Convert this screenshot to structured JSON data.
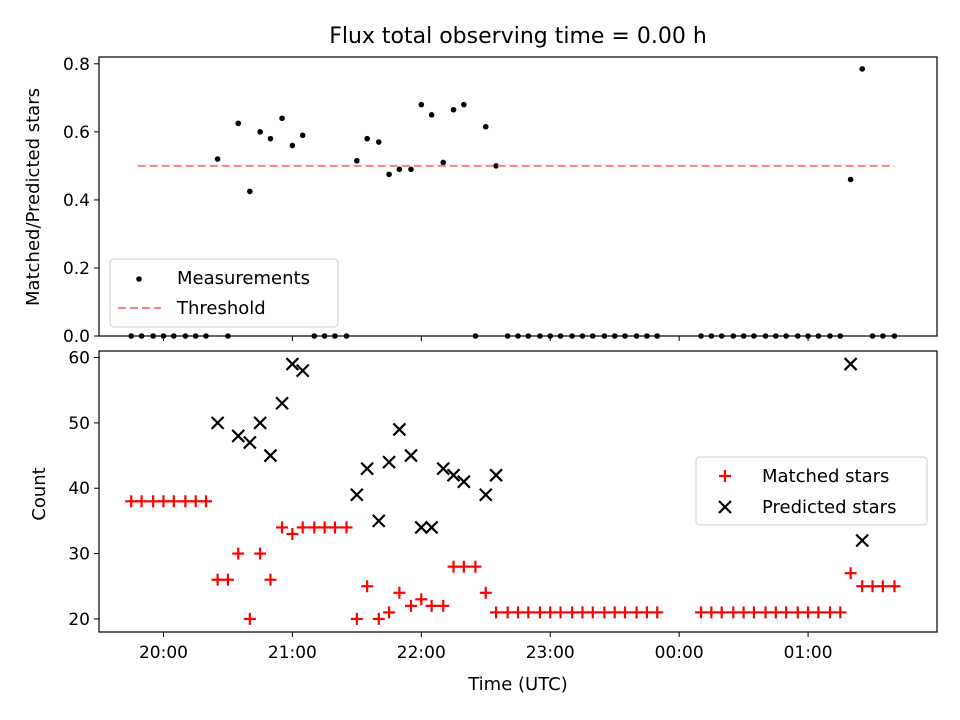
{
  "chart_data": [
    {
      "type": "scatter",
      "title": "Flux total observing time = 0.00 h",
      "xlabel": "",
      "ylabel": "Matched/Predicted stars",
      "ylim": [
        0,
        0.82
      ],
      "yticks": [
        "0.0",
        "0.2",
        "0.4",
        "0.6",
        "0.8"
      ],
      "ytick_values": [
        0,
        0.2,
        0.4,
        0.6,
        0.8
      ],
      "xlim_hours": [
        19.5,
        26.0
      ],
      "grid": false,
      "legend_placement": "lower-left",
      "series": [
        {
          "name": "Measurements",
          "marker": "dot",
          "color": "#000000",
          "x_hours": [
            19.75,
            19.83,
            19.92,
            20.0,
            20.08,
            20.17,
            20.25,
            20.33,
            20.42,
            20.5,
            20.58,
            20.67,
            20.75,
            20.83,
            20.92,
            21.0,
            21.08,
            21.17,
            21.25,
            21.33,
            21.42,
            21.5,
            21.58,
            21.67,
            21.75,
            21.83,
            21.92,
            22.0,
            22.08,
            22.17,
            22.25,
            22.33,
            22.42,
            22.5,
            22.58,
            22.67,
            22.75,
            22.83,
            22.92,
            23.0,
            23.08,
            23.17,
            23.25,
            23.33,
            23.42,
            23.5,
            23.58,
            23.67,
            23.75,
            23.83,
            24.17,
            24.25,
            24.33,
            24.42,
            24.5,
            24.58,
            24.67,
            24.75,
            24.83,
            24.92,
            25.0,
            25.08,
            25.17,
            25.25,
            25.33,
            25.42,
            25.5,
            25.58,
            25.67
          ],
          "values": [
            0,
            0,
            0,
            0,
            0,
            0,
            0,
            0,
            0.52,
            0,
            0.625,
            0.425,
            0.6,
            0.58,
            0.64,
            0.56,
            0.59,
            0,
            0,
            0,
            0,
            0.515,
            0.58,
            0.57,
            0.475,
            0.49,
            0.49,
            0.68,
            0.65,
            0.51,
            0.665,
            0.68,
            0,
            0.615,
            0.5,
            0,
            0,
            0,
            0,
            0,
            0,
            0,
            0,
            0,
            0,
            0,
            0,
            0,
            0,
            0,
            0,
            0,
            0,
            0,
            0,
            0,
            0,
            0,
            0,
            0,
            0,
            0,
            0,
            0,
            0.46,
            0.785,
            0,
            0,
            0
          ]
        },
        {
          "name": "Threshold",
          "marker": "dashed-line",
          "color": "#ff7f7f",
          "x_hours": [
            19.8,
            25.67
          ],
          "values": [
            0.5,
            0.5
          ]
        }
      ]
    },
    {
      "type": "scatter",
      "title": "",
      "xlabel": "Time (UTC)",
      "ylabel": "Count",
      "ylim": [
        18,
        61
      ],
      "yticks": [
        "20",
        "30",
        "40",
        "50",
        "60"
      ],
      "ytick_values": [
        20,
        30,
        40,
        50,
        60
      ],
      "xlim_hours": [
        19.5,
        26.0
      ],
      "xticks": [
        "20:00",
        "21:00",
        "22:00",
        "23:00",
        "00:00",
        "01:00"
      ],
      "xtick_hours": [
        20,
        21,
        22,
        23,
        24,
        25
      ],
      "grid": false,
      "legend_placement": "center-right",
      "series": [
        {
          "name": "Matched stars",
          "marker": "plus",
          "color": "#ff0000",
          "x_hours": [
            19.75,
            19.83,
            19.92,
            20.0,
            20.08,
            20.17,
            20.25,
            20.33,
            20.42,
            20.5,
            20.58,
            20.67,
            20.75,
            20.83,
            20.92,
            21.0,
            21.08,
            21.17,
            21.25,
            21.33,
            21.42,
            21.5,
            21.58,
            21.67,
            21.75,
            21.83,
            21.92,
            22.0,
            22.08,
            22.17,
            22.25,
            22.33,
            22.42,
            22.5,
            22.58,
            22.67,
            22.75,
            22.83,
            22.92,
            23.0,
            23.08,
            23.17,
            23.25,
            23.33,
            23.42,
            23.5,
            23.58,
            23.67,
            23.75,
            23.83,
            24.17,
            24.25,
            24.33,
            24.42,
            24.5,
            24.58,
            24.67,
            24.75,
            24.83,
            24.92,
            25.0,
            25.08,
            25.17,
            25.25,
            25.33,
            25.42,
            25.5,
            25.58,
            25.67
          ],
          "values": [
            38,
            38,
            38,
            38,
            38,
            38,
            38,
            38,
            26,
            26,
            30,
            20,
            30,
            26,
            34,
            33,
            34,
            34,
            34,
            34,
            34,
            20,
            25,
            20,
            21,
            24,
            22,
            23,
            22,
            22,
            28,
            28,
            28,
            24,
            21,
            21,
            21,
            21,
            21,
            21,
            21,
            21,
            21,
            21,
            21,
            21,
            21,
            21,
            21,
            21,
            21,
            21,
            21,
            21,
            21,
            21,
            21,
            21,
            21,
            21,
            21,
            21,
            21,
            21,
            27,
            25,
            25,
            25,
            25
          ]
        },
        {
          "name": "Predicted stars",
          "marker": "x",
          "color": "#000000",
          "x_hours": [
            20.42,
            20.58,
            20.67,
            20.75,
            20.83,
            20.92,
            21.0,
            21.08,
            21.5,
            21.58,
            21.67,
            21.75,
            21.83,
            21.92,
            22.0,
            22.08,
            22.17,
            22.25,
            22.33,
            22.5,
            22.58,
            25.33,
            25.42
          ],
          "values": [
            50,
            48,
            47,
            50,
            45,
            53,
            59,
            58,
            39,
            43,
            35,
            44,
            49,
            45,
            34,
            34,
            43,
            42,
            41,
            39,
            42,
            59,
            32
          ]
        }
      ]
    }
  ],
  "colors": {
    "axes": "#000000",
    "matched": "#ff0000",
    "predicted": "#000000",
    "threshold": "#ff7f7f"
  }
}
